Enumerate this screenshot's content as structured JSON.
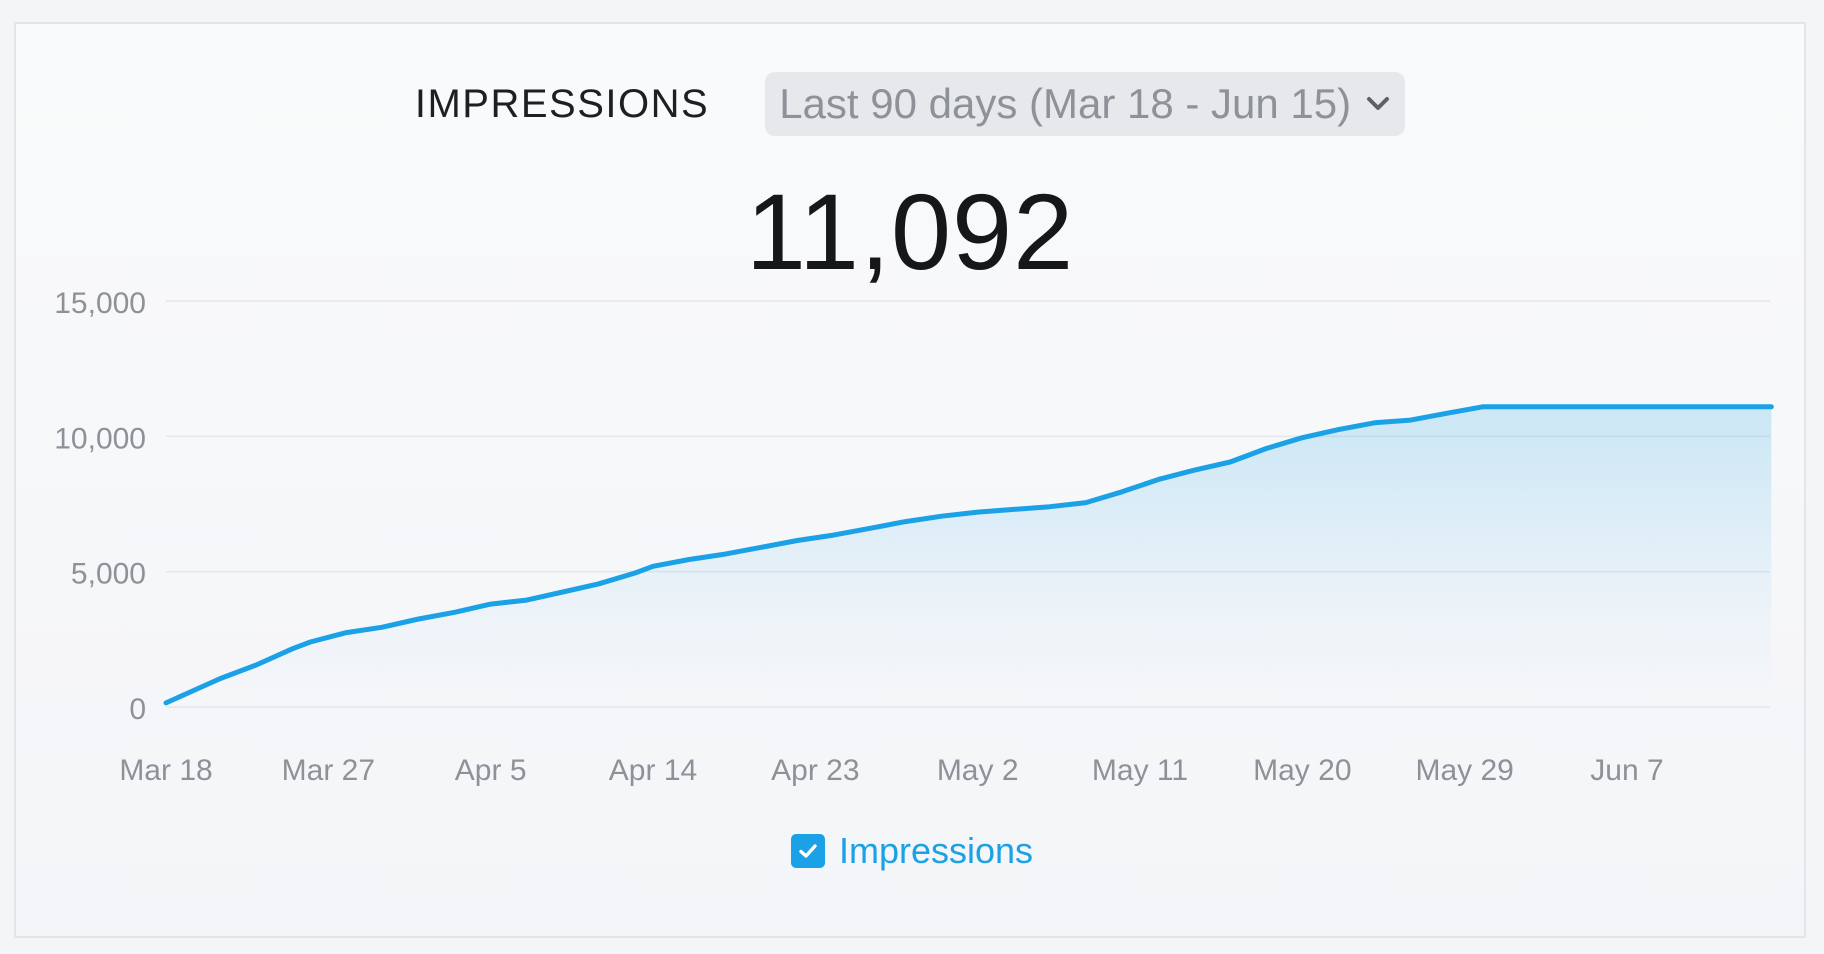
{
  "header": {
    "metric_label": "IMPRESSIONS",
    "range_label": "Last 90 days (Mar 18 - Jun 15)",
    "total": "11,092"
  },
  "legend": {
    "label": "Impressions",
    "checked": true
  },
  "colors": {
    "line": "#1aa1e6",
    "fill": "#1aa1e6",
    "grid": "#e4e6ea",
    "tick": "#8d9299"
  },
  "icons": {
    "dropdown": "chevron-down-icon",
    "checkbox": "checkmark-icon"
  },
  "chart_data": {
    "type": "area",
    "title": "",
    "xlabel": "",
    "ylabel": "",
    "ylim": [
      0,
      15000
    ],
    "yticks": [
      "0",
      "5,000",
      "10,000",
      "15,000"
    ],
    "yticks_values": [
      0,
      5000,
      10000,
      15000
    ],
    "xticks": [
      "Mar 18",
      "Mar 27",
      "Apr 5",
      "Apr 14",
      "Apr 23",
      "May 2",
      "May 11",
      "May 20",
      "May 29",
      "Jun 7"
    ],
    "xticks_dates": [
      "2024-03-18",
      "2024-03-27",
      "2024-04-05",
      "2024-04-14",
      "2024-04-23",
      "2024-05-02",
      "2024-05-11",
      "2024-05-20",
      "2024-05-29",
      "2024-06-07"
    ],
    "xlim": [
      "2024-03-18",
      "2024-06-15"
    ],
    "grid": true,
    "legend": "bottom",
    "series": [
      {
        "name": "Impressions",
        "x": [
          "2024-03-18",
          "2024-03-21",
          "2024-03-23",
          "2024-03-25",
          "2024-03-26",
          "2024-03-28",
          "2024-03-30",
          "2024-04-01",
          "2024-04-03",
          "2024-04-05",
          "2024-04-07",
          "2024-04-09",
          "2024-04-11",
          "2024-04-13",
          "2024-04-14",
          "2024-04-16",
          "2024-04-18",
          "2024-04-20",
          "2024-04-22",
          "2024-04-24",
          "2024-04-26",
          "2024-04-28",
          "2024-04-30",
          "2024-05-02",
          "2024-05-04",
          "2024-05-06",
          "2024-05-08",
          "2024-05-10",
          "2024-05-12",
          "2024-05-14",
          "2024-05-16",
          "2024-05-18",
          "2024-05-20",
          "2024-05-22",
          "2024-05-24",
          "2024-05-26",
          "2024-05-28",
          "2024-05-30",
          "2024-06-07",
          "2024-06-15"
        ],
        "values": [
          150,
          1050,
          1550,
          2150,
          2400,
          2750,
          2950,
          3250,
          3500,
          3800,
          3950,
          4250,
          4550,
          4950,
          5200,
          5450,
          5650,
          5900,
          6150,
          6350,
          6600,
          6850,
          7050,
          7200,
          7300,
          7400,
          7550,
          7950,
          8400,
          8750,
          9050,
          9550,
          9950,
          10250,
          10500,
          10600,
          10850,
          11092,
          11092,
          11092
        ]
      }
    ]
  }
}
